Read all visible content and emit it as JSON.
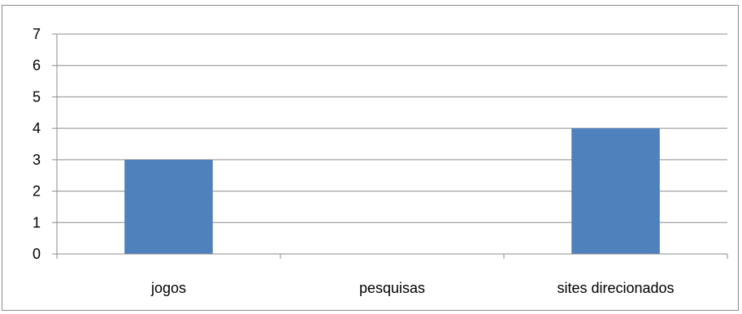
{
  "chart_data": {
    "type": "bar",
    "categories": [
      "jogos",
      "pesquisas",
      "sites direcionados"
    ],
    "values": [
      3,
      0,
      4
    ],
    "title": "",
    "xlabel": "",
    "ylabel": "",
    "ylim": [
      0,
      7
    ],
    "yticks": [
      "0",
      "1",
      "2",
      "3",
      "4",
      "5",
      "6",
      "7"
    ],
    "grid": true,
    "legend": "none",
    "bar_color": "#4f81bd",
    "grid_color": "#8c8c8c"
  }
}
